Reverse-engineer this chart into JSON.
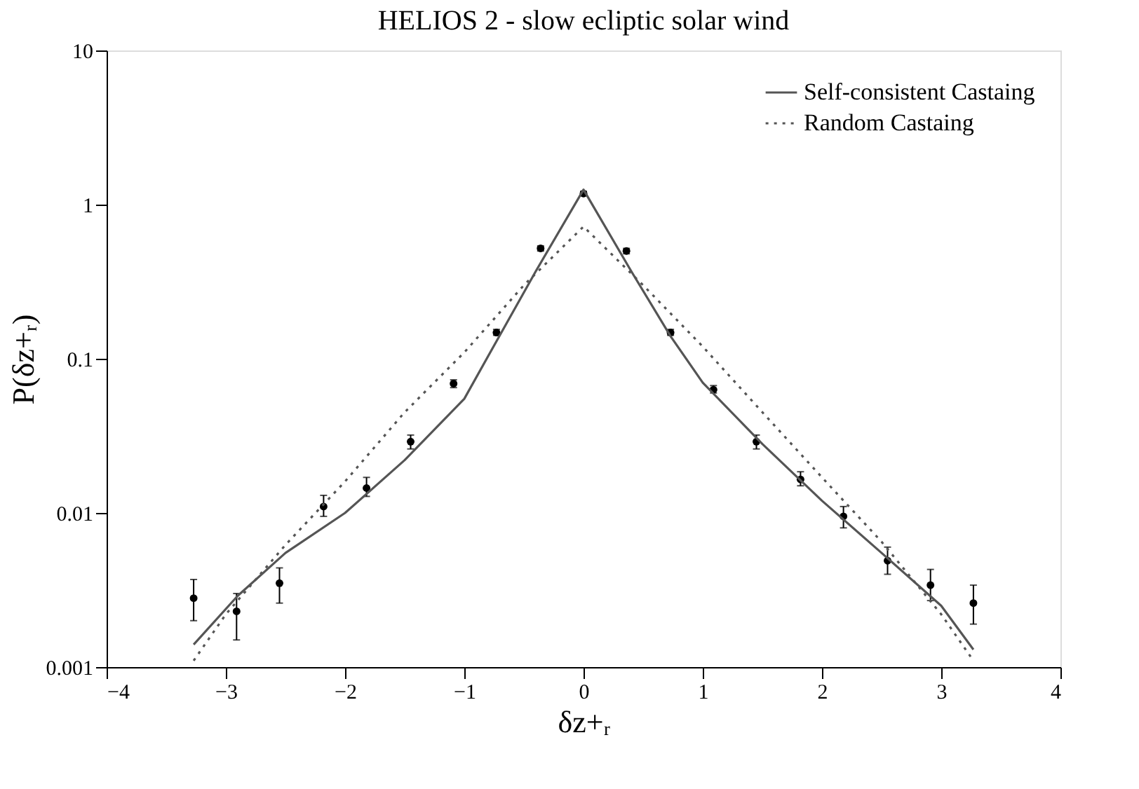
{
  "chart_data": {
    "type": "scatter",
    "title": "HELIOS 2 - slow ecliptic solar wind",
    "xlabel": "δz+ᵣ",
    "ylabel": "P(δz+ᵣ)",
    "log": "y",
    "grid": false,
    "legend": "top right",
    "xlim": [
      -4,
      4
    ],
    "xticks": [
      -4,
      -3,
      -2,
      -1,
      0,
      1,
      2,
      3,
      4
    ],
    "ylim": [
      0.001,
      10
    ],
    "yticks": [
      0.001,
      0.01,
      0.1,
      1,
      10
    ],
    "series": [
      {
        "marker": "circle",
        "color": "#000000",
        "x": [
          -3.27,
          -2.91,
          -2.55,
          -2.18,
          -1.82,
          -1.45,
          -1.09,
          -0.73,
          -0.36,
          0,
          0.36,
          0.73,
          1.09,
          1.45,
          1.82,
          2.18,
          2.55,
          2.91,
          3.27
        ],
        "values": [
          0.0028,
          0.0023,
          0.0035,
          0.011,
          0.0145,
          0.029,
          0.069,
          0.148,
          0.52,
          1.18,
          0.5,
          0.148,
          0.063,
          0.029,
          0.0165,
          0.0095,
          0.0049,
          0.0034,
          0.0026
        ],
        "errors": [
          [
            0.002,
            0.0037
          ],
          [
            0.0015,
            0.003
          ],
          [
            0.0026,
            0.0044
          ],
          [
            0.0095,
            0.013
          ],
          [
            0.0128,
            0.017
          ],
          [
            0.026,
            0.032
          ],
          [
            0.065,
            0.073
          ],
          [
            0.142,
            0.155
          ],
          [
            0.5,
            0.54
          ],
          [
            1.14,
            1.22
          ],
          [
            0.48,
            0.52
          ],
          [
            0.142,
            0.155
          ],
          [
            0.06,
            0.067
          ],
          [
            0.026,
            0.032
          ],
          [
            0.015,
            0.0185
          ],
          [
            0.008,
            0.011
          ],
          [
            0.004,
            0.006
          ],
          [
            0.0027,
            0.0043
          ],
          [
            0.0019,
            0.0034
          ]
        ]
      },
      {
        "name": "Self-consistent Castaing",
        "type": "line",
        "line_style": "solid",
        "color": "#555555",
        "x": [
          -3.27,
          -2.9,
          -2.5,
          -2,
          -1.5,
          -1,
          -0.73,
          -0.4,
          0,
          0.4,
          0.73,
          1,
          1.5,
          2,
          2.5,
          3,
          3.27
        ],
        "values": [
          0.0014,
          0.0029,
          0.0055,
          0.01,
          0.022,
          0.055,
          0.13,
          0.37,
          1.25,
          0.37,
          0.14,
          0.07,
          0.028,
          0.012,
          0.0055,
          0.0025,
          0.0013
        ]
      },
      {
        "name": "Random Castaing",
        "type": "line",
        "line_style": "dotted",
        "color": "#555555",
        "x": [
          -3.27,
          -3,
          -2.5,
          -2,
          -1.5,
          -1,
          -0.5,
          0,
          0.5,
          1,
          1.5,
          2,
          2.5,
          3,
          3.27
        ],
        "values": [
          0.0011,
          0.0022,
          0.0062,
          0.016,
          0.045,
          0.11,
          0.3,
          0.72,
          0.3,
          0.12,
          0.045,
          0.017,
          0.0065,
          0.0022,
          0.0011
        ]
      }
    ]
  }
}
